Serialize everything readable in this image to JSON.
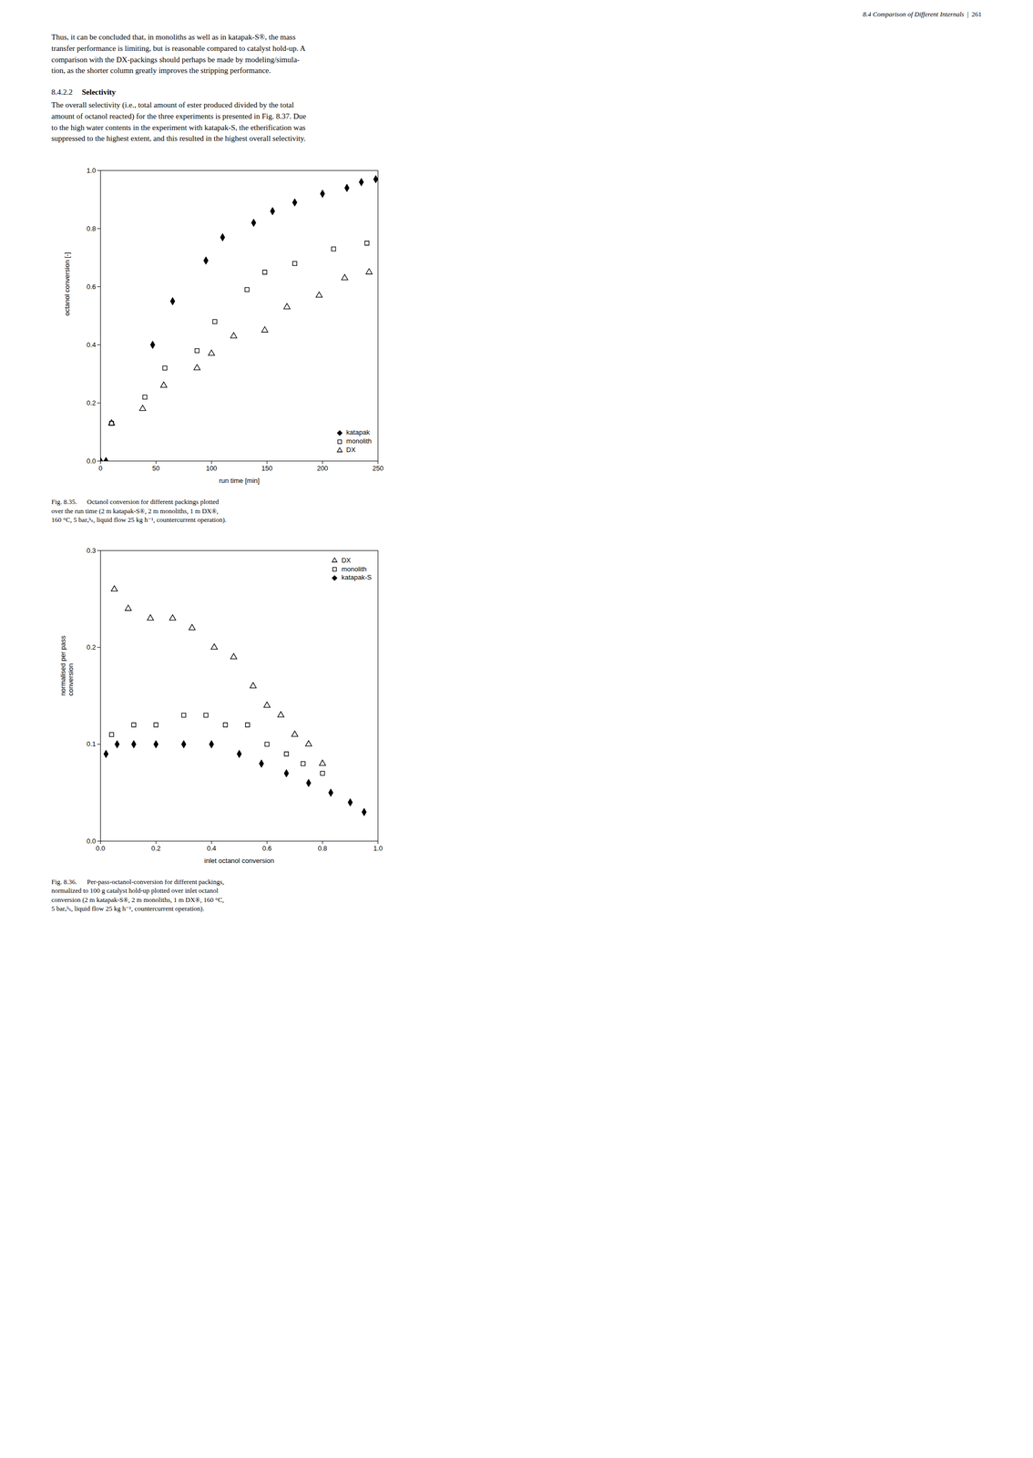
{
  "header": [
    "8.4 Comparison of Different Internals",
    "|",
    "261"
  ],
  "intro": [
    "Thus, it can be concluded that, in monoliths as well as in katapak-S®, the mass",
    "transfer performance is limiting, but is reasonable compared to catalyst hold-up. A",
    "comparison with the DX-packings should perhaps be made by modeling/simula-",
    "tion, as the shorter column greatly improves the stripping performance."
  ],
  "section": [
    "8.4.2.2",
    "Selectivity"
  ],
  "body": [
    "The overall selectivity (i.e., total amount of ester produced divided by the total",
    "amount of octanol reacted) for the three experiments is presented in Fig. 8.37. Due",
    "to the high water contents in the experiment with katapak-S, the etherification was",
    "suppressed to the highest extent, and this resulted in the highest overall selectivity."
  ],
  "chart_data": [
    {
      "type": "scatter",
      "xlabel": "run time [min]",
      "ylabel": "octanol conversion [-]",
      "xlim": [
        0,
        250
      ],
      "ylim": [
        0,
        1
      ],
      "xticks": [
        0,
        50,
        100,
        150,
        200,
        250
      ],
      "yticks": [
        {
          "value": 0,
          "label": "0.0"
        },
        0.2,
        0.4,
        0.6,
        0.8,
        {
          "value": 1,
          "label": "1.0"
        }
      ],
      "legend": "lower right",
      "caption": [
        "Fig. 8.35.      Octanol conversion for different packings plotted",
        "over the run time (2 m katapak-S®, 2 m monoliths, 1 m DX®,",
        "160 °C, 5 barₐᵇₛ, liquid flow 25 kg h⁻¹, countercurrent operation)."
      ],
      "series": [
        {
          "name": "katapak",
          "color": "black",
          "marker": "diamond",
          "x": [
            0,
            5,
            47,
            65,
            95,
            110,
            138,
            155,
            175,
            200,
            222,
            235,
            248
          ],
          "values": [
            0.0,
            0.0,
            0.4,
            0.55,
            0.69,
            0.77,
            0.82,
            0.86,
            0.89,
            0.92,
            0.94,
            0.96,
            0.97
          ]
        },
        {
          "name": "monolith",
          "color": "black",
          "marker": "square-open",
          "x": [
            10,
            40,
            58,
            87,
            103,
            132,
            148,
            175,
            210,
            240
          ],
          "values": [
            0.13,
            0.22,
            0.32,
            0.38,
            0.48,
            0.59,
            0.65,
            0.68,
            0.73,
            0.75
          ]
        },
        {
          "name": "DX",
          "color": "black",
          "marker": "triangle-open",
          "x": [
            10,
            38,
            57,
            87,
            100,
            120,
            148,
            168,
            197,
            220,
            242
          ],
          "values": [
            0.13,
            0.18,
            0.26,
            0.32,
            0.37,
            0.43,
            0.45,
            0.53,
            0.57,
            0.63,
            0.65
          ]
        }
      ]
    },
    {
      "type": "scatter",
      "xlabel": "inlet octanol conversion",
      "ylabel": "normalised per pass\nconversion",
      "xlim": [
        0,
        1
      ],
      "ylim": [
        0,
        0.3
      ],
      "xticks": [
        {
          "value": 0,
          "label": "0.0"
        },
        0.2,
        0.4,
        0.6,
        0.8,
        {
          "value": 1,
          "label": "1.0"
        }
      ],
      "yticks": [
        {
          "value": 0,
          "label": "0.0"
        },
        0.1,
        0.2,
        0.3
      ],
      "legend": "upper right",
      "caption": [
        "Fig. 8.36.      Per-pass-octanol-conversion for different packings,",
        "normalized to 100 g catalyst hold-up plotted over inlet octanol",
        "conversion (2 m katapak-S®, 2 m monoliths, 1 m DX®, 160 °C,",
        "5 barₐᵇₛ, liquid flow 25 kg h⁻¹, countercurrent operation)."
      ],
      "series": [
        {
          "name": "DX",
          "color": "black",
          "marker": "triangle-open",
          "x": [
            0.05,
            0.1,
            0.18,
            0.26,
            0.33,
            0.41,
            0.48,
            0.55,
            0.6,
            0.65,
            0.7,
            0.75,
            0.8
          ],
          "values": [
            0.26,
            0.24,
            0.23,
            0.23,
            0.22,
            0.2,
            0.19,
            0.16,
            0.14,
            0.13,
            0.11,
            0.1,
            0.08
          ]
        },
        {
          "name": "monolith",
          "color": "black",
          "marker": "square-open",
          "x": [
            0.04,
            0.12,
            0.2,
            0.3,
            0.38,
            0.45,
            0.53,
            0.6,
            0.67,
            0.73,
            0.8
          ],
          "values": [
            0.11,
            0.12,
            0.12,
            0.13,
            0.13,
            0.12,
            0.12,
            0.1,
            0.09,
            0.08,
            0.07
          ]
        },
        {
          "name": "katapak-S",
          "color": "black",
          "marker": "diamond",
          "x": [
            0.02,
            0.06,
            0.12,
            0.2,
            0.3,
            0.4,
            0.5,
            0.58,
            0.67,
            0.75,
            0.83,
            0.9,
            0.95
          ],
          "values": [
            0.09,
            0.1,
            0.1,
            0.1,
            0.1,
            0.1,
            0.09,
            0.08,
            0.07,
            0.06,
            0.05,
            0.04,
            0.03
          ]
        }
      ]
    }
  ]
}
